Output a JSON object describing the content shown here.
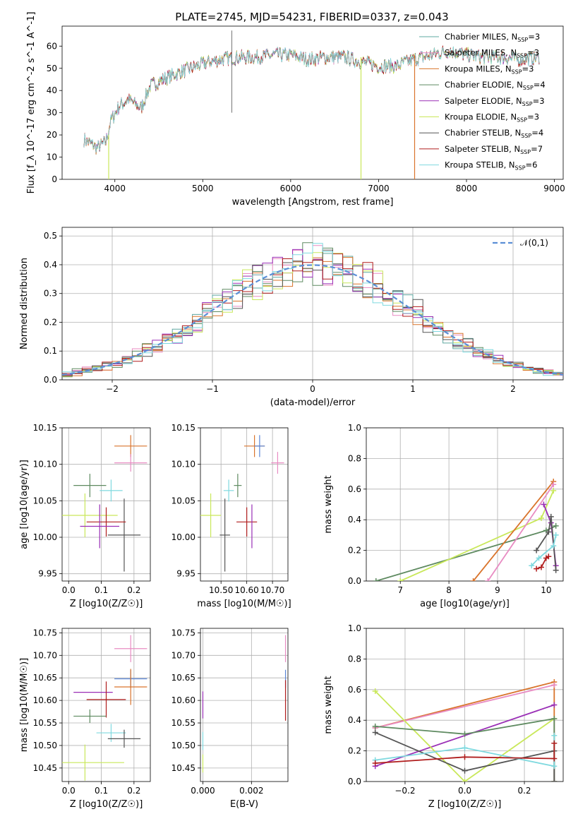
{
  "title": "PLATE=2745, MJD=54231, FIBERID=0337, z=0.043",
  "colors": {
    "Chabrier MILES": "#5fa8a0",
    "Salpeter MILES": "#e88bc2",
    "Kroupa MILES": "#d9742c",
    "Chabrier ELODIE": "#5e8a60",
    "Salpeter ELODIE": "#9a2fb6",
    "Kroupa ELODIE": "#c9e85a",
    "Chabrier STELIB": "#555555",
    "Salpeter STELIB": "#b01d1d",
    "Kroupa STELIB": "#7fd9df",
    "Chabrier MILES (panel)": "#5b86d6",
    "normal": "#5b8fd6"
  },
  "chart_data": [
    {
      "id": "spectrum",
      "type": "line",
      "xlabel": "wavelength [Angstrom, rest frame]",
      "ylabel": "Flux [f_λ 10^-17 erg cm^-2 s^-1 A^-1]",
      "xlim": [
        3400,
        9100
      ],
      "ylim": [
        0,
        69
      ],
      "xticks": [
        4000,
        5000,
        6000,
        7000,
        8000,
        9000
      ],
      "yticks": [
        0,
        10,
        20,
        30,
        40,
        50,
        60
      ],
      "grid": false,
      "legend_position": "top-right",
      "legend": [
        {
          "label": "Chabrier MILES, N",
          "sub": "SSP",
          "tail": "=3"
        },
        {
          "label": "Salpeter MILES, N",
          "sub": "SSP",
          "tail": "=3"
        },
        {
          "label": "Kroupa MILES, N",
          "sub": "SSP",
          "tail": "=3"
        },
        {
          "label": "Chabrier ELODIE, N",
          "sub": "SSP",
          "tail": "=4"
        },
        {
          "label": "Salpeter ELODIE, N",
          "sub": "SSP",
          "tail": "=3"
        },
        {
          "label": "Kroupa ELODIE, N",
          "sub": "SSP",
          "tail": "=3"
        },
        {
          "label": "Chabrier STELIB, N",
          "sub": "SSP",
          "tail": "=4"
        },
        {
          "label": "Salpeter STELIB, N",
          "sub": "SSP",
          "tail": "=7"
        },
        {
          "label": "Kroupa STELIB, N",
          "sub": "SSP",
          "tail": "=6"
        }
      ],
      "continuum": [
        [
          3650,
          18
        ],
        [
          3800,
          14
        ],
        [
          3900,
          17
        ],
        [
          3950,
          26
        ],
        [
          4050,
          33
        ],
        [
          4150,
          36
        ],
        [
          4300,
          32
        ],
        [
          4400,
          42
        ],
        [
          4600,
          46
        ],
        [
          4800,
          49
        ],
        [
          5000,
          52
        ],
        [
          5200,
          54
        ],
        [
          5400,
          55
        ],
        [
          5600,
          55
        ],
        [
          5800,
          56
        ],
        [
          6000,
          56
        ],
        [
          6200,
          54
        ],
        [
          6400,
          55
        ],
        [
          6600,
          55
        ],
        [
          6800,
          53
        ],
        [
          7000,
          51
        ],
        [
          7200,
          51
        ],
        [
          7400,
          54
        ],
        [
          7600,
          56
        ],
        [
          7800,
          58
        ],
        [
          8000,
          56
        ],
        [
          8200,
          55
        ],
        [
          8400,
          55
        ],
        [
          8600,
          54
        ],
        [
          8830,
          55
        ]
      ],
      "drops": [
        [
          3930,
          0
        ],
        [
          6800,
          0
        ],
        [
          7410,
          0
        ]
      ]
    },
    {
      "id": "residual-histogram",
      "type": "line",
      "xlabel": "(data-model)/error",
      "ylabel": "Normed distribution",
      "xlim": [
        -2.5,
        2.5
      ],
      "ylim": [
        0,
        0.53
      ],
      "xticks": [
        -2,
        -1,
        0,
        1,
        2
      ],
      "yticks": [
        0.0,
        0.1,
        0.2,
        0.3,
        0.4,
        0.5
      ],
      "grid": true,
      "legend": "𝒩(0,1)",
      "legend_position": "top-right",
      "bin_width": 0.1,
      "n_bins": 50
    },
    {
      "id": "age-vs-Z",
      "type": "scatter",
      "xlabel": "Z [log10(Z/Z☉)]",
      "ylabel": "age  [log10(age/yr)]",
      "xlim": [
        -0.02,
        0.25
      ],
      "ylim": [
        9.94,
        10.15
      ],
      "xticks": [
        0.0,
        0.1,
        0.2
      ],
      "yticks": [
        9.95,
        10.0,
        10.05,
        10.1,
        10.15
      ],
      "grid": true,
      "points": [
        {
          "c": "Kroupa MILES",
          "x": 0.19,
          "y": 10.125,
          "xe": 0.05,
          "ye": 0.015
        },
        {
          "c": "Salpeter MILES",
          "x": 0.19,
          "y": 10.102,
          "xe": 0.05,
          "ye": 0.012
        },
        {
          "c": "Chabrier ELODIE",
          "x": 0.065,
          "y": 10.071,
          "xe": 0.05,
          "ye": 0.016
        },
        {
          "c": "Kroupa STELIB",
          "x": 0.13,
          "y": 10.064,
          "xe": 0.035,
          "ye": 0.015
        },
        {
          "c": "Chabrier STELIB",
          "x": 0.17,
          "y": 10.003,
          "xe": 0.05,
          "ye": 0.05
        },
        {
          "c": "Kroupa ELODIE",
          "x": 0.05,
          "y": 10.03,
          "xe": 0.1,
          "ye": 0.03
        },
        {
          "c": "Salpeter STELIB",
          "x": 0.115,
          "y": 10.021,
          "xe": 0.06,
          "ye": 0.02
        },
        {
          "c": "Salpeter ELODIE",
          "x": 0.095,
          "y": 10.015,
          "xe": 0.06,
          "ye": 0.03
        }
      ]
    },
    {
      "id": "age-vs-mass",
      "type": "scatter",
      "xlabel": "mass [log10(M/M☉)]",
      "ylabel": "",
      "xlim": [
        10.42,
        10.76
      ],
      "ylim": [
        9.94,
        10.15
      ],
      "xticks": [
        10.5,
        10.6,
        10.7
      ],
      "yticks": [
        9.95,
        10.0,
        10.05,
        10.1,
        10.15
      ],
      "grid": true,
      "points": [
        {
          "c": "Kroupa MILES",
          "x": 10.63,
          "y": 10.125,
          "xe": 0.04,
          "ye": 0.015
        },
        {
          "c": "Chabrier MILES (panel)",
          "x": 10.65,
          "y": 10.125,
          "xe": 0.02,
          "ye": 0.015
        },
        {
          "c": "Salpeter MILES",
          "x": 10.72,
          "y": 10.102,
          "xe": 0.025,
          "ye": 0.015
        },
        {
          "c": "Chabrier ELODIE",
          "x": 10.565,
          "y": 10.071,
          "xe": 0.015,
          "ye": 0.016
        },
        {
          "c": "Kroupa STELIB",
          "x": 10.53,
          "y": 10.064,
          "xe": 0.02,
          "ye": 0.015
        },
        {
          "c": "Kroupa ELODIE",
          "x": 10.46,
          "y": 10.03,
          "xe": 0.04,
          "ye": 0.03
        },
        {
          "c": "Salpeter STELIB",
          "x": 10.6,
          "y": 10.021,
          "xe": 0.04,
          "ye": 0.02
        },
        {
          "c": "Salpeter ELODIE",
          "x": 10.62,
          "y": 10.015,
          "xe": 0.0,
          "ye": 0.03
        },
        {
          "c": "Chabrier STELIB",
          "x": 10.515,
          "y": 10.003,
          "xe": 0.02,
          "ye": 0.05
        }
      ]
    },
    {
      "id": "weight-vs-age",
      "type": "line",
      "xlabel": "age  [log10(age/yr)]",
      "ylabel": "mass weight",
      "xlim": [
        6.3,
        10.35
      ],
      "ylim": [
        0,
        1
      ],
      "xticks": [
        7,
        8,
        9,
        10
      ],
      "yticks": [
        0.0,
        0.2,
        0.4,
        0.6,
        0.8,
        1.0
      ],
      "grid": true,
      "series": [
        {
          "c": "Chabrier ELODIE",
          "x": [
            6.5,
            10.0,
            10.2
          ],
          "y": [
            0.0,
            0.33,
            0.36
          ]
        },
        {
          "c": "Kroupa ELODIE",
          "x": [
            7.0,
            9.9,
            10.15
          ],
          "y": [
            0.0,
            0.41,
            0.59
          ]
        },
        {
          "c": "Kroupa MILES",
          "x": [
            8.5,
            10.15
          ],
          "y": [
            0.0,
            0.65
          ]
        },
        {
          "c": "Salpeter MILES",
          "x": [
            8.8,
            10.15
          ],
          "y": [
            0.0,
            0.63
          ]
        },
        {
          "c": "Salpeter ELODIE",
          "x": [
            9.95,
            10.1,
            10.2
          ],
          "y": [
            0.5,
            0.38,
            0.1
          ]
        },
        {
          "c": "Chabrier STELIB",
          "x": [
            9.8,
            10.05,
            10.1,
            10.2
          ],
          "y": [
            0.2,
            0.32,
            0.42,
            0.07
          ]
        },
        {
          "c": "Salpeter STELIB",
          "x": [
            9.8,
            9.9,
            10.0,
            10.05
          ],
          "y": [
            0.08,
            0.09,
            0.15,
            0.16
          ]
        },
        {
          "c": "Kroupa STELIB",
          "x": [
            9.7,
            9.85,
            10.15,
            10.2
          ],
          "y": [
            0.1,
            0.15,
            0.23,
            0.3
          ]
        }
      ]
    },
    {
      "id": "mass-vs-Z",
      "type": "scatter",
      "xlabel": "Z [log10(Z/Z☉)]",
      "ylabel": "mass [log10(M/M☉)]",
      "xlim": [
        -0.02,
        0.25
      ],
      "ylim": [
        10.42,
        10.76
      ],
      "xticks": [
        0.0,
        0.1,
        0.2
      ],
      "yticks": [
        10.45,
        10.5,
        10.55,
        10.6,
        10.65,
        10.7,
        10.75
      ],
      "grid": true,
      "points": [
        {
          "c": "Salpeter MILES",
          "x": 0.19,
          "y": 10.715,
          "xe": 0.05,
          "ye": 0.03
        },
        {
          "c": "Chabrier MILES (panel)",
          "x": 0.19,
          "y": 10.648,
          "xe": 0.05,
          "ye": 0.02
        },
        {
          "c": "Kroupa MILES",
          "x": 0.19,
          "y": 10.63,
          "xe": 0.05,
          "ye": 0.04
        },
        {
          "c": "Salpeter ELODIE",
          "x": 0.075,
          "y": 10.618,
          "xe": 0.06,
          "ye": 0.0
        },
        {
          "c": "Salpeter STELIB",
          "x": 0.115,
          "y": 10.602,
          "xe": 0.06,
          "ye": 0.04
        },
        {
          "c": "Chabrier ELODIE",
          "x": 0.065,
          "y": 10.565,
          "xe": 0.05,
          "ye": 0.015
        },
        {
          "c": "Kroupa STELIB",
          "x": 0.13,
          "y": 10.528,
          "xe": 0.045,
          "ye": 0.02
        },
        {
          "c": "Chabrier STELIB",
          "x": 0.17,
          "y": 10.515,
          "xe": 0.05,
          "ye": 0.02
        },
        {
          "c": "Kroupa ELODIE",
          "x": 0.05,
          "y": 10.462,
          "xe": 0.12,
          "ye": 0.04
        }
      ]
    },
    {
      "id": "mass-vs-EBV",
      "type": "scatter",
      "xlabel": "E(B-V)",
      "ylabel": "",
      "xlim": [
        -0.0001,
        0.0035
      ],
      "ylim": [
        10.42,
        10.76
      ],
      "xticks": [
        0.0,
        0.002
      ],
      "yticks": [
        10.45,
        10.5,
        10.55,
        10.6,
        10.65,
        10.7,
        10.75
      ],
      "grid": true,
      "points": [
        {
          "c": "Salpeter MILES",
          "x": 0.0034,
          "y": 10.715,
          "xe": 0.0,
          "ye": 0.03
        },
        {
          "c": "Chabrier MILES (panel)",
          "x": 0.0034,
          "y": 10.648,
          "xe": 0.0,
          "ye": 0.02
        },
        {
          "c": "Salpeter STELIB",
          "x": 0.0034,
          "y": 10.6,
          "xe": 0.0,
          "ye": 0.045
        },
        {
          "c": "Salpeter ELODIE",
          "x": 0.0,
          "y": 10.59,
          "xe": 0.0,
          "ye": 0.03
        },
        {
          "c": "Kroupa STELIB",
          "x": 0.0,
          "y": 10.51,
          "xe": 0.0,
          "ye": 0.02
        },
        {
          "c": "Kroupa ELODIE",
          "x": 0.0,
          "y": 10.46,
          "xe": 0.0,
          "ye": 0.02
        }
      ]
    },
    {
      "id": "weight-vs-Z",
      "type": "line",
      "xlabel": "Z [log10(Z/Z☉)]",
      "ylabel": "mass weight",
      "xlim": [
        -0.33,
        0.33
      ],
      "ylim": [
        0,
        1
      ],
      "xticks": [
        -0.2,
        0.0,
        0.2
      ],
      "yticks": [
        0.0,
        0.2,
        0.4,
        0.6,
        0.8,
        1.0
      ],
      "grid": true,
      "series": [
        {
          "c": "Kroupa MILES",
          "x": [
            -0.3,
            0.3,
            0.3
          ],
          "y": [
            0.35,
            0.65,
            0.0
          ]
        },
        {
          "c": "Salpeter MILES",
          "x": [
            -0.3,
            0.3
          ],
          "y": [
            0.35,
            0.63
          ]
        },
        {
          "c": "Salpeter ELODIE",
          "x": [
            -0.3,
            0.3
          ],
          "y": [
            0.1,
            0.5
          ]
        },
        {
          "c": "Kroupa ELODIE",
          "x": [
            -0.3,
            0.0,
            0.3
          ],
          "y": [
            0.59,
            0.0,
            0.41
          ]
        },
        {
          "c": "Chabrier ELODIE",
          "x": [
            -0.3,
            0.0,
            0.3,
            0.3
          ],
          "y": [
            0.36,
            0.31,
            0.41,
            0.0
          ]
        },
        {
          "c": "Chabrier STELIB",
          "x": [
            -0.3,
            0.0,
            0.3,
            0.3
          ],
          "y": [
            0.32,
            0.07,
            0.2,
            0.0
          ]
        },
        {
          "c": "Kroupa STELIB",
          "x": [
            -0.3,
            0.0,
            0.3,
            0.3
          ],
          "y": [
            0.14,
            0.22,
            0.1,
            0.3
          ]
        },
        {
          "c": "Salpeter STELIB",
          "x": [
            -0.3,
            0.0,
            0.3,
            0.3
          ],
          "y": [
            0.12,
            0.16,
            0.15,
            0.25
          ]
        }
      ]
    }
  ]
}
